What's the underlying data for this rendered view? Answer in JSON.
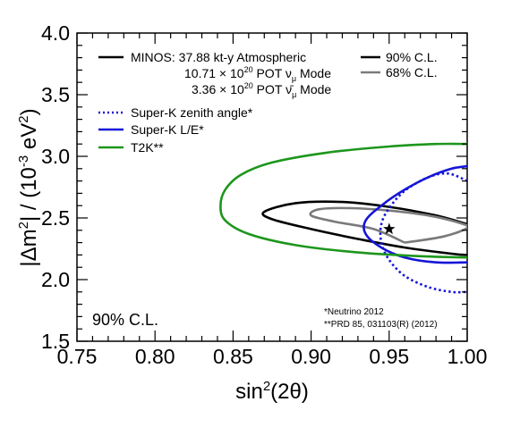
{
  "chart_data": {
    "type": "line",
    "xlabel": "sin²(2θ)",
    "ylabel": "|Δm²| / (10⁻³ eV²)",
    "xlim": [
      0.75,
      1.0
    ],
    "ylim": [
      1.5,
      4.0
    ],
    "xticks": [
      "0.75",
      "0.80",
      "0.85",
      "0.90",
      "0.95",
      "1.00"
    ],
    "yticks": [
      "1.5",
      "2.0",
      "2.5",
      "3.0",
      "3.5",
      "4.0"
    ],
    "grid": false,
    "legend_position": "top",
    "legend": {
      "minos_line1": "MINOS: 37.88 kt-y Atmospheric",
      "minos_line2": "10.71 × 10²⁰ POT ν_μ Mode",
      "minos_line3": "3.36 × 10²⁰ POT ν̄_μ Mode",
      "cl90": "90% C.L.",
      "cl68": "68% C.L.",
      "superk_zenith": "Super-K zenith angle*",
      "superk_le": "Super-K L/E*",
      "t2k": "T2K**"
    },
    "panel_label": "90% C.L.",
    "notes": [
      "*Neutrino 2012",
      "**PRD 85, 031103(R) (2012)"
    ],
    "best_fit": {
      "x": 0.95,
      "y": 2.41
    },
    "series": [
      {
        "name": "MINOS 90% C.L.",
        "color": "#000000",
        "dash": "solid",
        "x": [
          1.0,
          0.98,
          0.95,
          0.92,
          0.89,
          0.87,
          0.875,
          0.9,
          0.93,
          0.96,
          0.99,
          1.0
        ],
        "y": [
          2.45,
          2.52,
          2.59,
          2.63,
          2.62,
          2.55,
          2.49,
          2.41,
          2.33,
          2.26,
          2.21,
          2.2
        ]
      },
      {
        "name": "MINOS 68% C.L.",
        "color": "#7a7a7a",
        "dash": "solid",
        "x": [
          0.96,
          0.985,
          1.0,
          0.995,
          0.975,
          0.95,
          0.925,
          0.905,
          0.9,
          0.915,
          0.94,
          0.96
        ],
        "y": [
          2.3,
          2.35,
          2.42,
          2.46,
          2.52,
          2.56,
          2.58,
          2.57,
          2.52,
          2.47,
          2.41,
          2.3
        ]
      },
      {
        "name": "Super-K zenith angle*",
        "color": "#1515d8",
        "dash": "dotted",
        "x": [
          1.0,
          0.988,
          0.975,
          0.96,
          0.95,
          0.945,
          0.945,
          0.95,
          0.96,
          0.975,
          0.99,
          1.0
        ],
        "y": [
          2.8,
          2.86,
          2.83,
          2.72,
          2.58,
          2.45,
          2.3,
          2.16,
          2.03,
          1.94,
          1.9,
          1.9
        ]
      },
      {
        "name": "Super-K L/E*",
        "color": "#1515d8",
        "dash": "solid",
        "x": [
          1.0,
          0.99,
          0.975,
          0.96,
          0.945,
          0.935,
          0.935,
          0.945,
          0.96,
          0.98,
          1.0
        ],
        "y": [
          2.92,
          2.9,
          2.83,
          2.73,
          2.6,
          2.48,
          2.37,
          2.26,
          2.18,
          2.14,
          2.14
        ]
      },
      {
        "name": "T2K**",
        "color": "#1d961d",
        "dash": "solid",
        "x": [
          1.0,
          0.98,
          0.95,
          0.91,
          0.875,
          0.855,
          0.845,
          0.842,
          0.845,
          0.86,
          0.89,
          0.93,
          0.97,
          1.0
        ],
        "y": [
          3.1,
          3.1,
          3.08,
          3.03,
          2.95,
          2.85,
          2.73,
          2.6,
          2.48,
          2.37,
          2.28,
          2.22,
          2.19,
          2.18
        ]
      }
    ]
  }
}
